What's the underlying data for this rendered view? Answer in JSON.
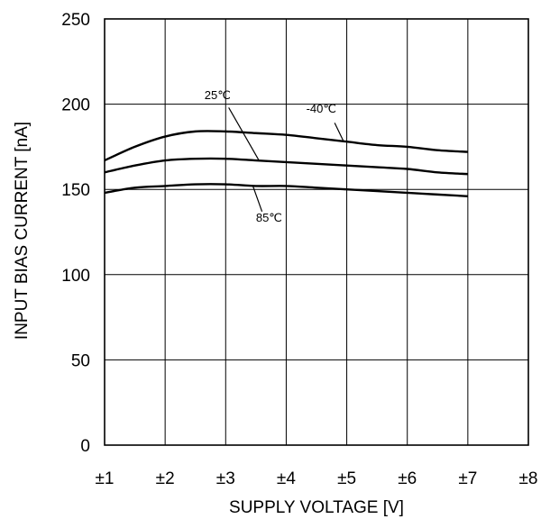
{
  "chart_data": {
    "type": "line",
    "xlabel": "SUPPLY VOLTAGE [V]",
    "ylabel": "INPUT BIAS CURRENT [nA]",
    "xlim": [
      1,
      8
    ],
    "ylim": [
      0,
      250
    ],
    "grid": true,
    "x_ticks": [
      {
        "value": 1,
        "label": "±1"
      },
      {
        "value": 2,
        "label": "±2"
      },
      {
        "value": 3,
        "label": "±3"
      },
      {
        "value": 4,
        "label": "±4"
      },
      {
        "value": 5,
        "label": "±5"
      },
      {
        "value": 6,
        "label": "±6"
      },
      {
        "value": 7,
        "label": "±7"
      },
      {
        "value": 8,
        "label": "±8"
      }
    ],
    "y_ticks": [
      {
        "value": 0,
        "label": "0"
      },
      {
        "value": 50,
        "label": "50"
      },
      {
        "value": 100,
        "label": "100"
      },
      {
        "value": 150,
        "label": "150"
      },
      {
        "value": 200,
        "label": "200"
      },
      {
        "value": 250,
        "label": "250"
      }
    ],
    "series": [
      {
        "name": "-40℃",
        "x": [
          1,
          1.5,
          2,
          2.5,
          3,
          3.5,
          4,
          4.5,
          5,
          5.5,
          6,
          6.5,
          7
        ],
        "values": [
          167,
          175,
          181,
          184,
          184,
          183,
          182,
          180,
          178,
          176,
          175,
          173,
          172
        ]
      },
      {
        "name": "25℃",
        "x": [
          1,
          1.5,
          2,
          2.5,
          3,
          3.5,
          4,
          4.5,
          5,
          5.5,
          6,
          6.5,
          7
        ],
        "values": [
          160,
          164,
          167,
          168,
          168,
          167,
          166,
          165,
          164,
          163,
          162,
          160,
          159
        ]
      },
      {
        "name": "85℃",
        "x": [
          1,
          1.5,
          2,
          2.5,
          3,
          3.5,
          4,
          4.5,
          5,
          5.5,
          6,
          6.5,
          7
        ],
        "values": [
          148,
          151,
          152,
          153,
          153,
          152,
          152,
          151,
          150,
          149,
          148,
          147,
          146
        ]
      }
    ],
    "annotations": [
      {
        "series": "25℃",
        "text": "25℃",
        "text_x": 2.65,
        "text_y": 203,
        "leader_from": [
          3.05,
          198
        ],
        "leader_to": [
          3.55,
          167
        ]
      },
      {
        "series": "-40℃",
        "text": "-40℃",
        "text_x": 4.33,
        "text_y": 195,
        "leader_from": [
          4.8,
          189
        ],
        "leader_to": [
          4.95,
          178
        ]
      },
      {
        "series": "85℃",
        "text": "85℃",
        "text_x": 3.5,
        "text_y": 131,
        "leader_from": [
          3.6,
          137
        ],
        "leader_to": [
          3.45,
          152
        ]
      }
    ]
  }
}
